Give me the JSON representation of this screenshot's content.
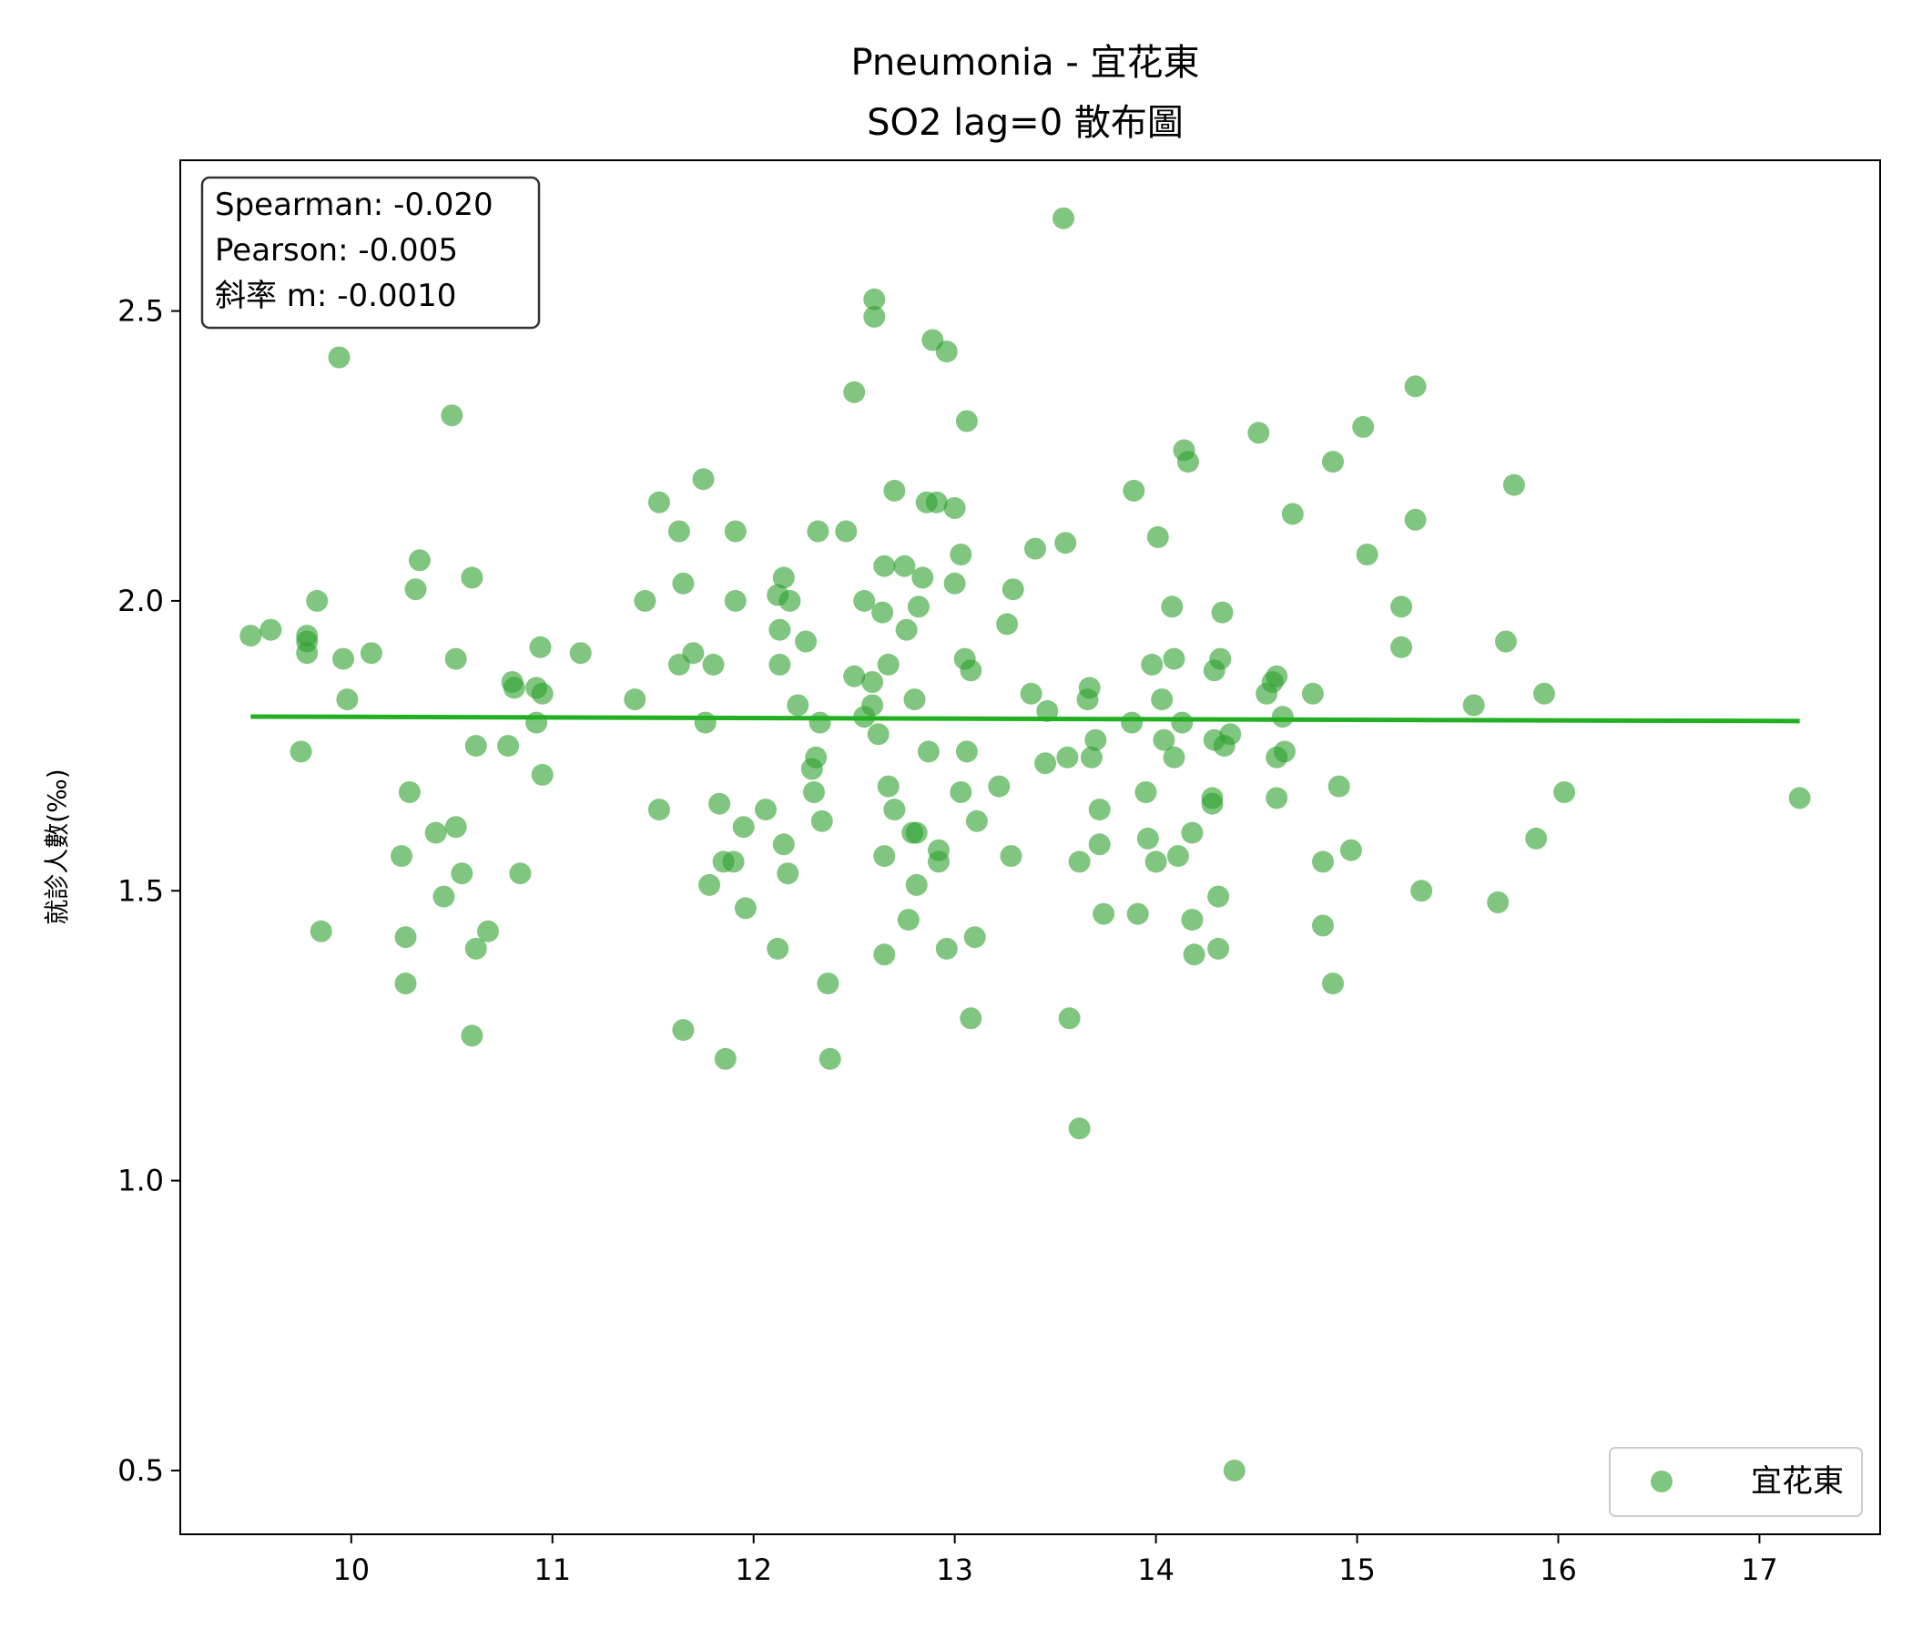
{
  "chart_data": {
    "type": "scatter",
    "title": "Pneumonia - 宜花東",
    "subtitle": "SO2 lag=0 散布圖",
    "xlabel": "",
    "ylabel": "就診人數(‰)",
    "xlim": [
      9.15,
      17.6
    ],
    "ylim": [
      0.39,
      2.76
    ],
    "xticks": [
      10,
      11,
      12,
      13,
      14,
      15,
      16,
      17
    ],
    "yticks": [
      0.5,
      1.0,
      1.5,
      2.0,
      2.5
    ],
    "xtick_labels": [
      "10",
      "11",
      "12",
      "13",
      "14",
      "15",
      "16",
      "17"
    ],
    "ytick_labels": [
      "0.5",
      "1.0",
      "1.5",
      "2.0",
      "2.5"
    ],
    "grid": false,
    "legend_position": "bottom-right",
    "stats": {
      "spearman": "Spearman: -0.020",
      "pearson": "Pearson: -0.005",
      "slope": "斜率 m: -0.0010"
    },
    "colors": {
      "points": "#2ca02c",
      "line": "#22b022",
      "frame": "#000000"
    },
    "series": [
      {
        "name": "宜花東",
        "points": [
          [
            9.5,
            1.94
          ],
          [
            9.6,
            1.95
          ],
          [
            9.78,
            1.94
          ],
          [
            9.78,
            1.91
          ],
          [
            9.78,
            1.93
          ],
          [
            9.75,
            1.74
          ],
          [
            9.83,
            2.0
          ],
          [
            9.85,
            1.43
          ],
          [
            9.94,
            2.42
          ],
          [
            9.96,
            1.9
          ],
          [
            9.98,
            1.83
          ],
          [
            10.1,
            1.91
          ],
          [
            10.25,
            1.56
          ],
          [
            10.27,
            1.42
          ],
          [
            10.27,
            1.34
          ],
          [
            10.29,
            1.67
          ],
          [
            10.32,
            2.02
          ],
          [
            10.34,
            2.07
          ],
          [
            10.42,
            1.6
          ],
          [
            10.46,
            1.49
          ],
          [
            10.5,
            2.32
          ],
          [
            10.52,
            1.9
          ],
          [
            10.52,
            1.61
          ],
          [
            10.55,
            1.53
          ],
          [
            10.6,
            2.04
          ],
          [
            10.6,
            1.25
          ],
          [
            10.62,
            1.75
          ],
          [
            10.62,
            1.4
          ],
          [
            10.68,
            1.43
          ],
          [
            10.78,
            1.75
          ],
          [
            10.8,
            1.86
          ],
          [
            10.81,
            1.85
          ],
          [
            10.84,
            1.53
          ],
          [
            10.92,
            1.85
          ],
          [
            10.92,
            1.79
          ],
          [
            10.94,
            1.92
          ],
          [
            10.95,
            1.84
          ],
          [
            10.95,
            1.7
          ],
          [
            11.14,
            1.91
          ],
          [
            11.41,
            1.83
          ],
          [
            11.46,
            2.0
          ],
          [
            11.53,
            2.17
          ],
          [
            11.53,
            1.64
          ],
          [
            11.63,
            2.12
          ],
          [
            11.63,
            1.89
          ],
          [
            11.65,
            2.03
          ],
          [
            11.65,
            1.26
          ],
          [
            11.7,
            1.91
          ],
          [
            11.75,
            2.21
          ],
          [
            11.76,
            1.79
          ],
          [
            11.78,
            1.51
          ],
          [
            11.8,
            1.89
          ],
          [
            11.83,
            1.65
          ],
          [
            11.85,
            1.55
          ],
          [
            11.86,
            1.21
          ],
          [
            11.9,
            1.55
          ],
          [
            11.91,
            2.12
          ],
          [
            11.91,
            2.0
          ],
          [
            11.95,
            1.61
          ],
          [
            11.96,
            1.47
          ],
          [
            12.06,
            1.64
          ],
          [
            12.12,
            2.01
          ],
          [
            12.13,
            1.95
          ],
          [
            12.13,
            1.89
          ],
          [
            12.12,
            1.4
          ],
          [
            12.15,
            2.04
          ],
          [
            12.15,
            1.58
          ],
          [
            12.17,
            1.53
          ],
          [
            12.18,
            2.0
          ],
          [
            12.22,
            1.82
          ],
          [
            12.26,
            1.93
          ],
          [
            12.29,
            1.71
          ],
          [
            12.3,
            1.67
          ],
          [
            12.31,
            1.73
          ],
          [
            12.32,
            2.12
          ],
          [
            12.33,
            1.79
          ],
          [
            12.34,
            1.62
          ],
          [
            12.37,
            1.34
          ],
          [
            12.38,
            1.21
          ],
          [
            12.46,
            2.12
          ],
          [
            12.5,
            2.36
          ],
          [
            12.5,
            1.87
          ],
          [
            12.55,
            2.0
          ],
          [
            12.55,
            1.8
          ],
          [
            12.59,
            1.82
          ],
          [
            12.59,
            1.86
          ],
          [
            12.6,
            2.52
          ],
          [
            12.6,
            2.49
          ],
          [
            12.62,
            1.77
          ],
          [
            12.64,
            1.98
          ],
          [
            12.65,
            2.06
          ],
          [
            12.65,
            1.56
          ],
          [
            12.65,
            1.39
          ],
          [
            12.67,
            1.89
          ],
          [
            12.67,
            1.68
          ],
          [
            12.7,
            2.19
          ],
          [
            12.7,
            1.64
          ],
          [
            12.75,
            2.06
          ],
          [
            12.76,
            1.95
          ],
          [
            12.77,
            1.45
          ],
          [
            12.79,
            1.6
          ],
          [
            12.8,
            1.83
          ],
          [
            12.81,
            1.6
          ],
          [
            12.81,
            1.51
          ],
          [
            12.82,
            1.99
          ],
          [
            12.84,
            2.04
          ],
          [
            12.86,
            2.17
          ],
          [
            12.87,
            1.74
          ],
          [
            12.89,
            2.45
          ],
          [
            12.91,
            2.17
          ],
          [
            12.92,
            1.57
          ],
          [
            12.92,
            1.55
          ],
          [
            12.96,
            2.43
          ],
          [
            12.96,
            1.4
          ],
          [
            13.0,
            2.16
          ],
          [
            13.0,
            2.03
          ],
          [
            13.03,
            2.08
          ],
          [
            13.03,
            1.67
          ],
          [
            13.05,
            1.9
          ],
          [
            13.06,
            2.31
          ],
          [
            13.06,
            1.74
          ],
          [
            13.08,
            1.88
          ],
          [
            13.08,
            1.28
          ],
          [
            13.1,
            1.42
          ],
          [
            13.11,
            1.62
          ],
          [
            13.22,
            1.68
          ],
          [
            13.26,
            1.96
          ],
          [
            13.28,
            1.56
          ],
          [
            13.29,
            2.02
          ],
          [
            13.38,
            1.84
          ],
          [
            13.4,
            2.09
          ],
          [
            13.45,
            1.72
          ],
          [
            13.46,
            1.81
          ],
          [
            13.54,
            2.66
          ],
          [
            13.55,
            2.1
          ],
          [
            13.56,
            1.73
          ],
          [
            13.57,
            1.28
          ],
          [
            13.62,
            1.55
          ],
          [
            13.62,
            1.09
          ],
          [
            13.66,
            1.83
          ],
          [
            13.67,
            1.85
          ],
          [
            13.68,
            1.73
          ],
          [
            13.7,
            1.76
          ],
          [
            13.72,
            1.64
          ],
          [
            13.72,
            1.58
          ],
          [
            13.74,
            1.46
          ],
          [
            13.88,
            1.79
          ],
          [
            13.89,
            2.19
          ],
          [
            13.91,
            1.46
          ],
          [
            13.95,
            1.67
          ],
          [
            13.96,
            1.59
          ],
          [
            13.98,
            1.89
          ],
          [
            14.0,
            1.55
          ],
          [
            14.01,
            2.11
          ],
          [
            14.03,
            1.83
          ],
          [
            14.04,
            1.76
          ],
          [
            14.08,
            1.99
          ],
          [
            14.09,
            1.9
          ],
          [
            14.09,
            1.73
          ],
          [
            14.11,
            1.56
          ],
          [
            14.13,
            1.79
          ],
          [
            14.14,
            2.26
          ],
          [
            14.16,
            2.24
          ],
          [
            14.18,
            1.6
          ],
          [
            14.18,
            1.45
          ],
          [
            14.19,
            1.39
          ],
          [
            14.28,
            1.66
          ],
          [
            14.28,
            1.65
          ],
          [
            14.29,
            1.76
          ],
          [
            14.29,
            1.88
          ],
          [
            14.31,
            1.49
          ],
          [
            14.31,
            1.4
          ],
          [
            14.32,
            1.9
          ],
          [
            14.33,
            1.98
          ],
          [
            14.34,
            1.75
          ],
          [
            14.37,
            1.77
          ],
          [
            14.39,
            0.5
          ],
          [
            14.51,
            2.29
          ],
          [
            14.55,
            1.84
          ],
          [
            14.58,
            1.86
          ],
          [
            14.6,
            1.87
          ],
          [
            14.6,
            1.73
          ],
          [
            14.6,
            1.66
          ],
          [
            14.63,
            1.8
          ],
          [
            14.64,
            1.74
          ],
          [
            14.68,
            2.15
          ],
          [
            14.78,
            1.84
          ],
          [
            14.83,
            1.55
          ],
          [
            14.83,
            1.44
          ],
          [
            14.88,
            2.24
          ],
          [
            14.88,
            1.34
          ],
          [
            14.91,
            1.68
          ],
          [
            14.97,
            1.57
          ],
          [
            15.03,
            2.3
          ],
          [
            15.05,
            2.08
          ],
          [
            15.22,
            1.99
          ],
          [
            15.22,
            1.92
          ],
          [
            15.29,
            2.37
          ],
          [
            15.29,
            2.14
          ],
          [
            15.32,
            1.5
          ],
          [
            15.58,
            1.82
          ],
          [
            15.7,
            1.48
          ],
          [
            15.74,
            1.93
          ],
          [
            15.78,
            2.2
          ],
          [
            15.89,
            1.59
          ],
          [
            15.93,
            1.84
          ],
          [
            16.03,
            1.67
          ],
          [
            17.2,
            1.66
          ]
        ]
      }
    ],
    "fit_line": {
      "x": [
        9.5,
        17.2
      ],
      "y": [
        1.8004,
        1.7927
      ]
    }
  }
}
